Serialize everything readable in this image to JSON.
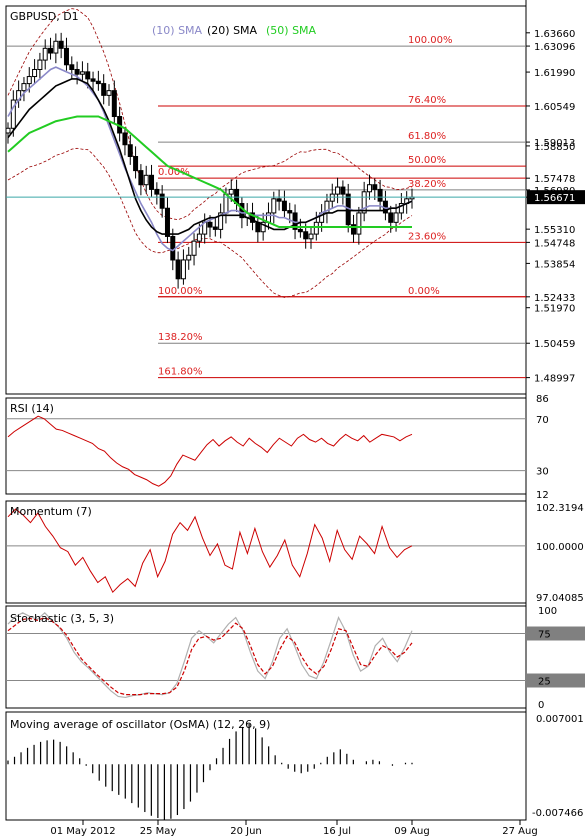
{
  "main": {
    "symbol": "GBPUSD, D1",
    "sma_legend": [
      {
        "label": "(10) SMA",
        "color": "#8a88c8"
      },
      {
        "label": "(20) SMA",
        "color": "#000000"
      },
      {
        "label": "(50) SMA",
        "color": "#22cc22"
      }
    ],
    "ylim": [
      1.483,
      1.648
    ],
    "price_levels": [
      "1.63660",
      "1.63096",
      "1.61990",
      "1.60549",
      "1.59013",
      "1.58850",
      "1.57478",
      "1.56980",
      "1.56671",
      "1.55310",
      "1.54748",
      "1.53854",
      "1.52433",
      "1.51970",
      "1.50459",
      "1.48997"
    ],
    "fib_levels": [
      {
        "label": "100.00%",
        "price": 1.63096,
        "color": "#808080",
        "label_color": "#dd2222"
      },
      {
        "label": "76.40%",
        "price": 1.60549,
        "color": "#cc0000",
        "label_color": "#dd2222"
      },
      {
        "label": "61.80%",
        "price": 1.59013,
        "color": "#808080",
        "label_color": "#dd2222"
      },
      {
        "label": "50.00%",
        "price": 1.5799,
        "color": "#cc0000",
        "label_color": "#dd2222"
      },
      {
        "label": "38.20%",
        "price": 1.5698,
        "color": "#808080",
        "label_color": "#dd2222"
      },
      {
        "label": "23.60%",
        "price": 1.54748,
        "color": "#cc0000",
        "label_color": "#dd2222"
      },
      {
        "label": "0.00%",
        "price": 1.52433,
        "color": "#cc0000",
        "label_color": "#dd2222"
      },
      {
        "label": "0.00%",
        "price": 1.57478,
        "color": "#cc0000",
        "label_color": "#dd2222"
      },
      {
        "label": "100.00%",
        "price": 1.52433,
        "color": "#cc0000",
        "label_color": "#dd2222"
      },
      {
        "label": "138.20%",
        "price": 1.50459,
        "color": "#808080",
        "label_color": "#dd2222"
      },
      {
        "label": "161.80%",
        "price": 1.48997,
        "color": "#cc0000",
        "label_color": "#dd2222"
      }
    ],
    "current_price": "1.56671"
  },
  "rsi": {
    "title": "RSI (14)",
    "levels": [
      "86",
      "70",
      "30",
      "12"
    ]
  },
  "momentum": {
    "title": "Momentum (7)",
    "levels": [
      "102.3194",
      "100.0000",
      "97.04085"
    ]
  },
  "stochastic": {
    "title": "Stochastic (3, 5, 3)",
    "levels": [
      "100",
      "75",
      "25",
      "0"
    ]
  },
  "osma": {
    "title": "Moving average of oscillator (OsMA) (12, 26, 9)",
    "levels": [
      "0.007001",
      "-0.007466"
    ]
  },
  "x_axis": {
    "labels": [
      "01 May 2012",
      "25 May",
      "20 Jun",
      "16 Jul",
      "09 Aug",
      "27 Aug"
    ]
  },
  "chart_data": {
    "type": "candlestick",
    "title": "GBPUSD, D1",
    "ylim": [
      1.483,
      1.648
    ],
    "x_ticks": [
      "01 May 2012",
      "25 May",
      "20 Jun",
      "16 Jul",
      "09 Aug",
      "27 Aug"
    ],
    "closes": [
      1.596,
      1.608,
      1.612,
      1.615,
      1.618,
      1.621,
      1.625,
      1.63,
      1.628,
      1.633,
      1.63,
      1.623,
      1.621,
      1.619,
      1.62,
      1.617,
      1.616,
      1.615,
      1.61,
      1.612,
      1.601,
      1.594,
      1.589,
      1.584,
      1.578,
      1.572,
      1.576,
      1.57,
      1.568,
      1.562,
      1.55,
      1.54,
      1.532,
      1.54,
      1.542,
      1.548,
      1.551,
      1.556,
      1.554,
      1.553,
      1.56,
      1.568,
      1.57,
      1.564,
      1.558,
      1.56,
      1.556,
      1.552,
      1.556,
      1.56,
      1.566,
      1.565,
      1.561,
      1.56,
      1.553,
      1.552,
      1.549,
      1.551,
      1.556,
      1.56,
      1.565,
      1.568,
      1.571,
      1.568,
      1.555,
      1.551,
      1.56,
      1.569,
      1.572,
      1.57,
      1.565,
      1.56,
      1.556,
      1.56,
      1.564,
      1.566,
      1.5667
    ],
    "sma": [
      {
        "name": "(10) SMA",
        "values": [
          1.601,
          1.605,
          1.608,
          1.611,
          1.613,
          1.615,
          1.617,
          1.619,
          1.621,
          1.622,
          1.621,
          1.62,
          1.619,
          1.618,
          1.616,
          1.614,
          1.611,
          1.608,
          1.603,
          1.597,
          1.591,
          1.585,
          1.579,
          1.574,
          1.569,
          1.564,
          1.56,
          1.556,
          1.551,
          1.547,
          1.545,
          1.544,
          1.546,
          1.548,
          1.55,
          1.552,
          1.554,
          1.556,
          1.557,
          1.558,
          1.559,
          1.56,
          1.561,
          1.561,
          1.56,
          1.56,
          1.559,
          1.559,
          1.559,
          1.559,
          1.559,
          1.558,
          1.558,
          1.557,
          1.556,
          1.556,
          1.556,
          1.557,
          1.558,
          1.56,
          1.561,
          1.562,
          1.563,
          1.563,
          1.562,
          1.561,
          1.561,
          1.562,
          1.563,
          1.563,
          1.563,
          1.562,
          1.562,
          1.562,
          1.563,
          1.564,
          1.565
        ]
      },
      {
        "name": "(20) SMA",
        "values": [
          1.592,
          1.595,
          1.598,
          1.601,
          1.604,
          1.606,
          1.608,
          1.61,
          1.612,
          1.614,
          1.615,
          1.616,
          1.617,
          1.617,
          1.616,
          1.615,
          1.612,
          1.608,
          1.604,
          1.599,
          1.593,
          1.587,
          1.58,
          1.573,
          1.566,
          1.561,
          1.557,
          1.554,
          1.552,
          1.551,
          1.551,
          1.551,
          1.551,
          1.552,
          1.553,
          1.555,
          1.556,
          1.557,
          1.558,
          1.558,
          1.559,
          1.559,
          1.559,
          1.559,
          1.559,
          1.558,
          1.557,
          1.556,
          1.555,
          1.554,
          1.553,
          1.553,
          1.553,
          1.554,
          1.555,
          1.556,
          1.556,
          1.557,
          1.558,
          1.559,
          1.56,
          1.56,
          1.561,
          1.561,
          1.561,
          1.561,
          1.561,
          1.561,
          1.561,
          1.561,
          1.561,
          1.561,
          1.562,
          1.562,
          1.563,
          1.564,
          1.565
        ]
      },
      {
        "name": "(50) SMA",
        "values": [
          1.586,
          1.588,
          1.59,
          1.592,
          1.594,
          1.595,
          1.596,
          1.597,
          1.598,
          1.599,
          1.5995,
          1.6,
          1.6005,
          1.601,
          1.601,
          1.601,
          1.601,
          1.601,
          1.6,
          1.599,
          1.598,
          1.597,
          1.596,
          1.594,
          1.592,
          1.59,
          1.588,
          1.586,
          1.584,
          1.582,
          1.58,
          1.579,
          1.578,
          1.577,
          1.576,
          1.575,
          1.574,
          1.573,
          1.572,
          1.571,
          1.57,
          1.568,
          1.566,
          1.564,
          1.562,
          1.56,
          1.559,
          1.558,
          1.557,
          1.556,
          1.555,
          1.554,
          1.554,
          1.554,
          1.554,
          1.554,
          1.554,
          1.554,
          1.554,
          1.554,
          1.554,
          1.554,
          1.554,
          1.554,
          1.554,
          1.554,
          1.554,
          1.554,
          1.554,
          1.554,
          1.554,
          1.554,
          1.554,
          1.554,
          1.554,
          1.554,
          1.554
        ]
      }
    ],
    "rsi": [
      56,
      60,
      63,
      66,
      69,
      72,
      70,
      66,
      62,
      61,
      59,
      57,
      55,
      53,
      51,
      47,
      45,
      40,
      36,
      33,
      31,
      27,
      25,
      23,
      20,
      18,
      21,
      26,
      35,
      42,
      40,
      38,
      44,
      50,
      54,
      49,
      53,
      56,
      52,
      49,
      55,
      51,
      48,
      44,
      50,
      55,
      52,
      49,
      55,
      58,
      54,
      52,
      55,
      51,
      49,
      54,
      58,
      55,
      53,
      57,
      52,
      55,
      58,
      57,
      56,
      53,
      56,
      58
    ],
    "momentum": [
      101.5,
      101.9,
      101.6,
      101.2,
      101.7,
      101.0,
      100.5,
      99.9,
      99.7,
      99.0,
      99.4,
      98.7,
      98.1,
      98.4,
      97.6,
      98.0,
      98.3,
      97.9,
      99.1,
      99.8,
      98.4,
      99.2,
      100.6,
      101.2,
      100.8,
      101.5,
      100.4,
      99.5,
      100.1,
      99.0,
      98.8,
      100.7,
      99.6,
      100.9,
      99.7,
      98.9,
      99.5,
      100.3,
      99.0,
      98.4,
      99.6,
      101.1,
      100.4,
      99.2,
      100.8,
      99.8,
      99.3,
      100.5,
      100.1,
      99.6,
      101.0,
      99.9,
      99.4,
      99.8,
      100.0
    ],
    "stochastic_main": [
      85,
      93,
      97,
      93,
      90,
      97,
      89,
      81,
      70,
      55,
      45,
      38,
      30,
      22,
      14,
      8,
      7,
      9,
      10,
      12,
      11,
      10,
      12,
      22,
      45,
      70,
      78,
      72,
      65,
      75,
      85,
      92,
      78,
      55,
      35,
      27,
      45,
      70,
      80,
      62,
      42,
      30,
      27,
      45,
      68,
      92,
      77,
      52,
      35,
      40,
      62,
      70,
      55,
      45,
      60,
      78
    ],
    "stochastic_signal": [
      78,
      84,
      90,
      91,
      89,
      92,
      88,
      82,
      73,
      60,
      48,
      40,
      32,
      25,
      18,
      12,
      10,
      10,
      10,
      11,
      11,
      11,
      12,
      18,
      35,
      58,
      70,
      72,
      68,
      70,
      78,
      86,
      80,
      62,
      42,
      32,
      40,
      58,
      72,
      66,
      50,
      38,
      32,
      40,
      58,
      80,
      78,
      60,
      42,
      40,
      52,
      62,
      58,
      50,
      55,
      65
    ],
    "osma": [
      0.0005,
      0.001,
      0.0016,
      0.0022,
      0.0026,
      0.003,
      0.0032,
      0.0033,
      0.003,
      0.0024,
      0.0016,
      0.0008,
      -0.0002,
      -0.0012,
      -0.0022,
      -0.003,
      -0.0036,
      -0.0041,
      -0.0046,
      -0.0052,
      -0.0058,
      -0.0064,
      -0.0069,
      -0.0072,
      -0.0074,
      -0.0073,
      -0.0068,
      -0.006,
      -0.005,
      -0.0038,
      -0.0024,
      -0.0008,
      0.0008,
      0.0022,
      0.0034,
      0.0044,
      0.005,
      0.0054,
      0.0048,
      0.0036,
      0.0024,
      0.0012,
      0.0002,
      -0.0006,
      -0.001,
      -0.0012,
      -0.001,
      -0.0006,
      0.0002,
      0.001,
      0.0016,
      0.002,
      0.0014,
      0.0006,
      0.0,
      0.0004,
      0.0006,
      0.0004,
      0.0,
      -0.0002,
      0.0,
      0.0002,
      0.0002
    ]
  }
}
